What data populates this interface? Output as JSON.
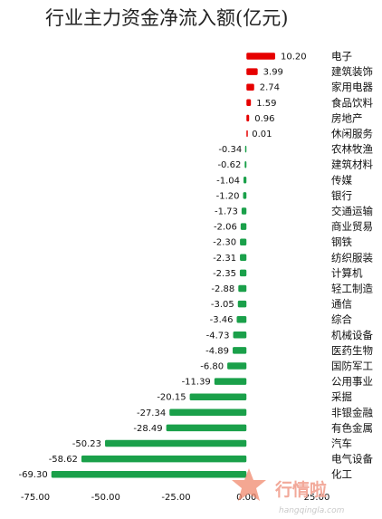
{
  "chart_data": {
    "type": "bar",
    "orientation": "horizontal",
    "title": "行业主力资金净流入额(亿元)",
    "categories": [
      "电子",
      "建筑装饰",
      "家用电器",
      "食品饮料",
      "房地产",
      "休闲服务",
      "农林牧渔",
      "建筑材料",
      "传媒",
      "银行",
      "交通运输",
      "商业贸易",
      "钢铁",
      "纺织服装",
      "计算机",
      "轻工制造",
      "通信",
      "综合",
      "机械设备",
      "医药生物",
      "国防军工",
      "公用事业",
      "采掘",
      "非银金融",
      "有色金属",
      "汽车",
      "电气设备",
      "化工"
    ],
    "values": [
      10.2,
      3.99,
      2.74,
      1.59,
      0.96,
      0.01,
      -0.34,
      -0.62,
      -1.04,
      -1.2,
      -1.73,
      -2.06,
      -2.3,
      -2.31,
      -2.35,
      -2.88,
      -3.05,
      -3.46,
      -4.73,
      -4.89,
      -6.8,
      -11.39,
      -20.15,
      -27.34,
      -28.49,
      -50.23,
      -58.62,
      -69.3
    ],
    "value_labels": [
      "10.20",
      "3.99",
      "2.74",
      "1.59",
      "0.96",
      "0.01",
      "-0.34",
      "-0.62",
      "-1.04",
      "-1.20",
      "-1.73",
      "-2.06",
      "-2.30",
      "-2.31",
      "-2.35",
      "-2.88",
      "-3.05",
      "-3.46",
      "-4.73",
      "-4.89",
      "-6.80",
      "-11.39",
      "-20.15",
      "-27.34",
      "-28.49",
      "-50.23",
      "-58.62",
      "-69.30"
    ],
    "x_ticks": [
      "-75.00",
      "-50.00",
      "-25.00",
      "0.00",
      "25.00"
    ],
    "xlim": [
      -75,
      25
    ],
    "grid": false,
    "colors": {
      "positive": "#e60000",
      "negative": "#1aa04a"
    }
  },
  "watermark": {
    "brand": "行情啦",
    "site": "hangqingla.com",
    "color": "#f08a6e"
  }
}
